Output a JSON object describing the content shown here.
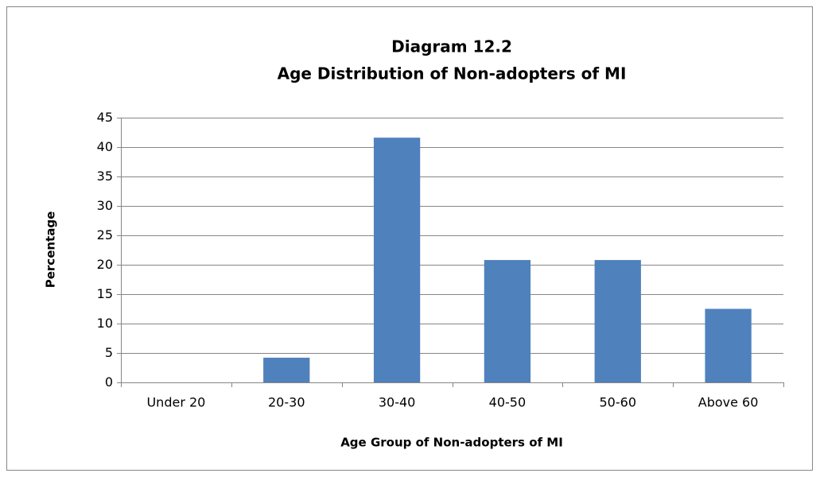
{
  "chart_data": {
    "type": "bar",
    "title": [
      "Diagram 12.2",
      "Age Distribution of Non-adopters of MI"
    ],
    "x_label": "Age Group of Non-adopters of MI",
    "y_label": "Percentage",
    "categories": [
      "Under 20",
      "20-30",
      "30-40",
      "40-50",
      "50-60",
      "Above 60"
    ],
    "values": [
      0,
      4.2,
      41.6,
      20.8,
      20.8,
      12.5
    ],
    "color": "#4f81bd",
    "ylim": [
      0,
      45
    ],
    "yticks": [
      0,
      5,
      10,
      15,
      20,
      25,
      30,
      35,
      40,
      45
    ],
    "grid": true
  }
}
